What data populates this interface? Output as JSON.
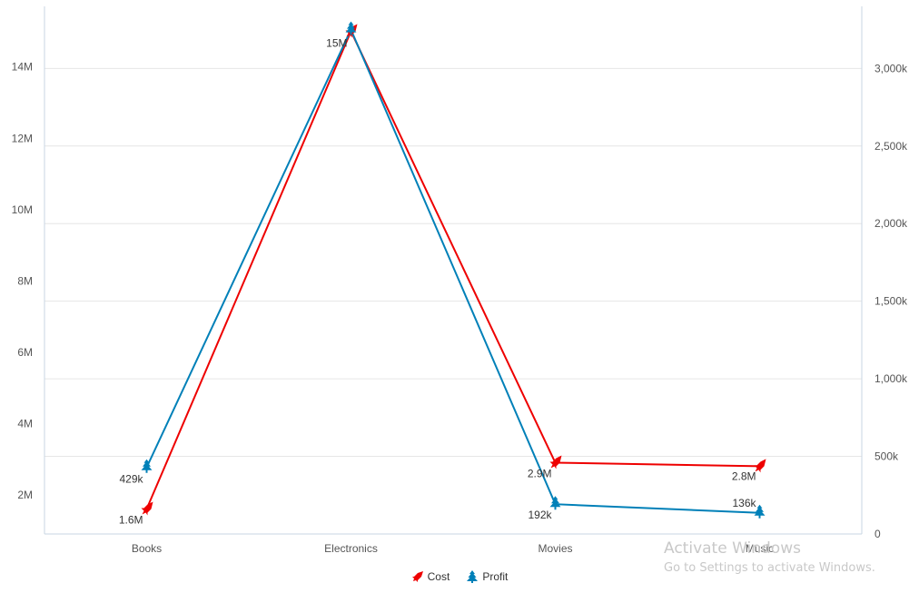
{
  "chart_data": {
    "type": "line",
    "title": "",
    "categories": [
      "Books",
      "Electronics",
      "Movies",
      "Music"
    ],
    "series": [
      {
        "name": "Cost",
        "axis": "left",
        "color": "#ee0000",
        "marker": "rocket-icon",
        "values": [
          1600000,
          15000000,
          2900000,
          2800000
        ],
        "labels": [
          "1.6M",
          "15M",
          "2.9M",
          "2.8M"
        ]
      },
      {
        "name": "Profit",
        "axis": "right",
        "color": "#0080b8",
        "marker": "tree-icon",
        "values": [
          429000,
          3250000,
          192000,
          136000
        ],
        "labels": [
          "429k",
          "",
          "192k",
          "136k"
        ]
      }
    ],
    "left_axis": {
      "ticks": [
        "2M",
        "4M",
        "6M",
        "8M",
        "10M",
        "12M",
        "14M"
      ],
      "range": [
        900000,
        15700000
      ]
    },
    "right_axis": {
      "ticks": [
        "0",
        "500k",
        "1,000k",
        "1,500k",
        "2,000k",
        "2,500k",
        "3,000k"
      ],
      "range": [
        0,
        3400000
      ]
    },
    "xlabel": "",
    "ylabel": "",
    "grid": true,
    "legend_position": "bottom"
  },
  "legend": {
    "items": [
      {
        "label": "Cost",
        "color": "#ee0000"
      },
      {
        "label": "Profit",
        "color": "#0080b8"
      }
    ]
  },
  "watermark": {
    "line1": "Activate Windows",
    "line2": "Go to Settings to activate Windows."
  }
}
